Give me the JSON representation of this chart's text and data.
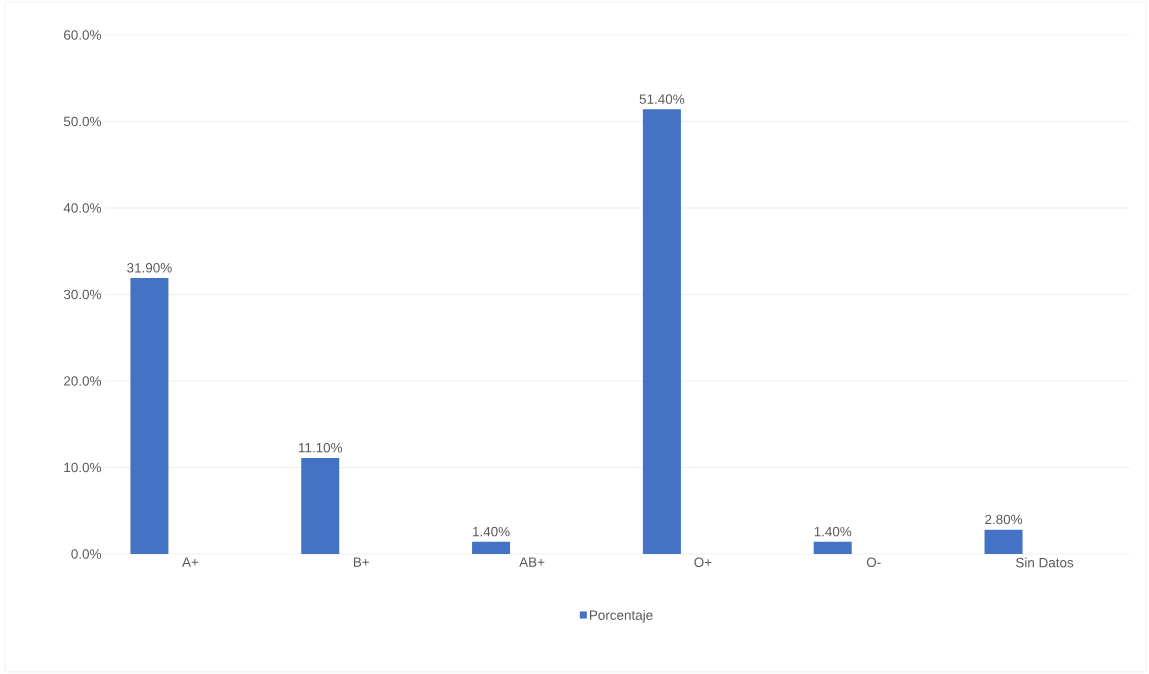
{
  "chart_data": {
    "type": "bar",
    "categories": [
      "A+",
      "B+",
      "AB+",
      "O+",
      "O-",
      "Sin Datos"
    ],
    "series": [
      {
        "name": "Porcentaje",
        "color": "#4472c4",
        "values": [
          31.9,
          11.1,
          1.4,
          51.4,
          1.4,
          2.8
        ],
        "value_labels": [
          "31.90%",
          "11.10%",
          "1.40%",
          "51.40%",
          "1.40%",
          "2.80%"
        ]
      }
    ],
    "ylim": [
      0,
      60
    ],
    "yticks": [
      {
        "value": 0,
        "label": "0.0%"
      },
      {
        "value": 10,
        "label": "10.0%"
      },
      {
        "value": 20,
        "label": "20.0%"
      },
      {
        "value": 30,
        "label": "30.0%"
      },
      {
        "value": 40,
        "label": "40.0%"
      },
      {
        "value": 50,
        "label": "50.0%"
      },
      {
        "value": 60,
        "label": "60.0%"
      }
    ],
    "grid": "y",
    "legend": "bottom"
  }
}
